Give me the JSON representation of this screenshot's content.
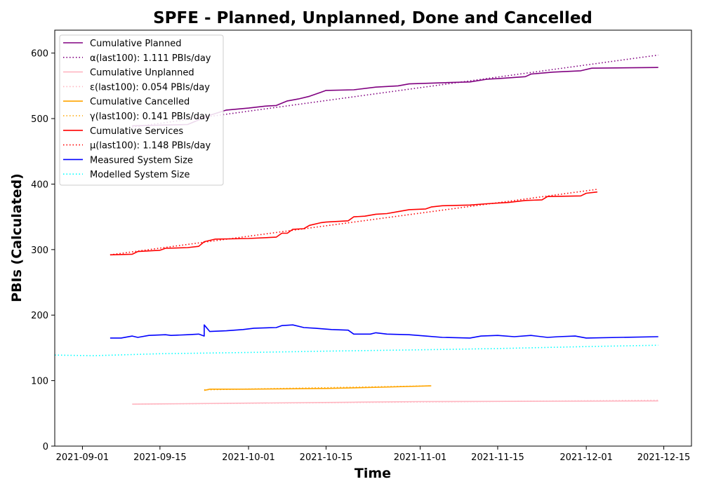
{
  "chart_data": {
    "type": "line",
    "title": "SPFE - Planned, Unplanned, Done  and Cancelled",
    "xlabel": "Time",
    "ylabel": "PBIs (Calculated)",
    "xlim": [
      "2021-08-27",
      "2021-12-20"
    ],
    "ylim": [
      0,
      635
    ],
    "x_ticks": [
      "2021-09-01",
      "2021-09-15",
      "2021-10-01",
      "2021-10-15",
      "2021-11-01",
      "2021-11-15",
      "2021-12-01",
      "2021-12-15"
    ],
    "y_ticks": [
      0,
      100,
      200,
      300,
      400,
      500,
      600
    ],
    "grid": false,
    "legend_position": "top-left",
    "series": [
      {
        "name": "Cumulative Planned",
        "color": "#800080",
        "style": "solid",
        "points": [
          [
            "2021-09-10",
            489
          ],
          [
            "2021-09-20",
            491
          ],
          [
            "2021-09-24",
            505
          ],
          [
            "2021-09-27",
            513
          ],
          [
            "2021-10-01",
            516
          ],
          [
            "2021-10-04",
            519
          ],
          [
            "2021-10-06",
            520
          ],
          [
            "2021-10-08",
            527
          ],
          [
            "2021-10-10",
            530
          ],
          [
            "2021-10-12",
            534
          ],
          [
            "2021-10-14",
            540
          ],
          [
            "2021-10-15",
            543
          ],
          [
            "2021-10-20",
            544
          ],
          [
            "2021-10-24",
            548
          ],
          [
            "2021-10-28",
            550
          ],
          [
            "2021-10-30",
            553
          ],
          [
            "2021-11-06",
            555
          ],
          [
            "2021-11-10",
            556
          ],
          [
            "2021-11-13",
            560
          ],
          [
            "2021-11-15",
            561
          ],
          [
            "2021-11-20",
            564
          ],
          [
            "2021-11-21",
            568
          ],
          [
            "2021-11-25",
            571
          ],
          [
            "2021-11-30",
            573
          ],
          [
            "2021-12-02",
            577
          ],
          [
            "2021-12-14",
            578
          ]
        ]
      },
      {
        "name": "α(last100): 1.111 PBIs/day",
        "color": "#800080",
        "style": "dotted",
        "points": [
          [
            "2021-09-10",
            487
          ],
          [
            "2021-12-14",
            597
          ]
        ]
      },
      {
        "name": "Cumulative Unplanned",
        "color": "#ffb6c1",
        "style": "solid",
        "points": [
          [
            "2021-09-10",
            64
          ],
          [
            "2021-10-20",
            67
          ],
          [
            "2021-11-01",
            68
          ],
          [
            "2021-12-14",
            69
          ]
        ]
      },
      {
        "name": "ε(last100): 0.054 PBIs/day",
        "color": "#ffb6c1",
        "style": "dotted",
        "points": [
          [
            "2021-09-10",
            64
          ],
          [
            "2021-12-14",
            70
          ]
        ]
      },
      {
        "name": "Cumulative Cancelled",
        "color": "#ffa500",
        "style": "solid",
        "points": [
          [
            "2021-09-23",
            85
          ],
          [
            "2021-09-24",
            87
          ],
          [
            "2021-10-01",
            87
          ],
          [
            "2021-10-15",
            88
          ],
          [
            "2021-10-20",
            89
          ],
          [
            "2021-10-25",
            90
          ],
          [
            "2021-11-03",
            92
          ]
        ]
      },
      {
        "name": "γ(last100): 0.141 PBIs/day",
        "color": "#ffa500",
        "style": "dotted",
        "points": [
          [
            "2021-09-23",
            86
          ],
          [
            "2021-11-03",
            92
          ]
        ]
      },
      {
        "name": "Cumulative Services",
        "color": "#ff0000",
        "style": "solid",
        "points": [
          [
            "2021-09-06",
            292
          ],
          [
            "2021-09-10",
            293
          ],
          [
            "2021-09-11",
            297
          ],
          [
            "2021-09-15",
            299
          ],
          [
            "2021-09-16",
            302
          ],
          [
            "2021-09-20",
            303
          ],
          [
            "2021-09-22",
            305
          ],
          [
            "2021-09-23",
            312
          ],
          [
            "2021-09-25",
            316
          ],
          [
            "2021-10-01",
            317
          ],
          [
            "2021-10-06",
            319
          ],
          [
            "2021-10-07",
            325
          ],
          [
            "2021-10-08",
            325
          ],
          [
            "2021-10-09",
            331
          ],
          [
            "2021-10-11",
            332
          ],
          [
            "2021-10-12",
            337
          ],
          [
            "2021-10-14",
            341
          ],
          [
            "2021-10-15",
            342
          ],
          [
            "2021-10-19",
            344
          ],
          [
            "2021-10-20",
            350
          ],
          [
            "2021-10-22",
            351
          ],
          [
            "2021-10-24",
            354
          ],
          [
            "2021-10-26",
            355
          ],
          [
            "2021-10-28",
            358
          ],
          [
            "2021-10-30",
            361
          ],
          [
            "2021-11-02",
            362
          ],
          [
            "2021-11-03",
            365
          ],
          [
            "2021-11-05",
            367
          ],
          [
            "2021-11-10",
            368
          ],
          [
            "2021-11-13",
            370
          ],
          [
            "2021-11-17",
            372
          ],
          [
            "2021-11-20",
            375
          ],
          [
            "2021-11-23",
            376
          ],
          [
            "2021-11-24",
            381
          ],
          [
            "2021-11-30",
            382
          ],
          [
            "2021-12-01",
            386
          ],
          [
            "2021-12-03",
            388
          ]
        ]
      },
      {
        "name": "µ(last100): 1.148 PBIs/day",
        "color": "#ff0000",
        "style": "dotted",
        "points": [
          [
            "2021-09-06",
            292
          ],
          [
            "2021-12-03",
            392
          ]
        ]
      },
      {
        "name": "Measured System Size",
        "color": "#0000ff",
        "style": "solid",
        "points": [
          [
            "2021-09-06",
            165
          ],
          [
            "2021-09-08",
            165
          ],
          [
            "2021-09-10",
            168
          ],
          [
            "2021-09-11",
            166
          ],
          [
            "2021-09-13",
            169
          ],
          [
            "2021-09-16",
            170
          ],
          [
            "2021-09-17",
            169
          ],
          [
            "2021-09-20",
            170
          ],
          [
            "2021-09-22",
            171
          ],
          [
            "2021-09-23",
            168
          ],
          [
            "2021-09-23",
            185
          ],
          [
            "2021-09-24",
            175
          ],
          [
            "2021-09-27",
            176
          ],
          [
            "2021-09-30",
            178
          ],
          [
            "2021-10-02",
            180
          ],
          [
            "2021-10-06",
            181
          ],
          [
            "2021-10-07",
            184
          ],
          [
            "2021-10-09",
            185
          ],
          [
            "2021-10-11",
            181
          ],
          [
            "2021-10-13",
            180
          ],
          [
            "2021-10-16",
            178
          ],
          [
            "2021-10-19",
            177
          ],
          [
            "2021-10-20",
            171
          ],
          [
            "2021-10-23",
            171
          ],
          [
            "2021-10-24",
            173
          ],
          [
            "2021-10-26",
            171
          ],
          [
            "2021-10-30",
            170
          ],
          [
            "2021-11-02",
            168
          ],
          [
            "2021-11-05",
            166
          ],
          [
            "2021-11-10",
            165
          ],
          [
            "2021-11-12",
            168
          ],
          [
            "2021-11-15",
            169
          ],
          [
            "2021-11-18",
            167
          ],
          [
            "2021-11-21",
            169
          ],
          [
            "2021-11-24",
            166
          ],
          [
            "2021-11-26",
            167
          ],
          [
            "2021-11-29",
            168
          ],
          [
            "2021-12-01",
            165
          ],
          [
            "2021-12-14",
            167
          ]
        ]
      },
      {
        "name": "Modelled System Size",
        "color": "#00ffff",
        "style": "dotted",
        "points": [
          [
            "2021-08-27",
            139
          ],
          [
            "2021-09-03",
            138
          ],
          [
            "2021-09-15",
            141
          ],
          [
            "2021-10-01",
            143
          ],
          [
            "2021-10-15",
            145
          ],
          [
            "2021-11-01",
            147
          ],
          [
            "2021-11-15",
            149
          ],
          [
            "2021-12-01",
            152
          ],
          [
            "2021-12-14",
            154
          ]
        ]
      }
    ]
  }
}
